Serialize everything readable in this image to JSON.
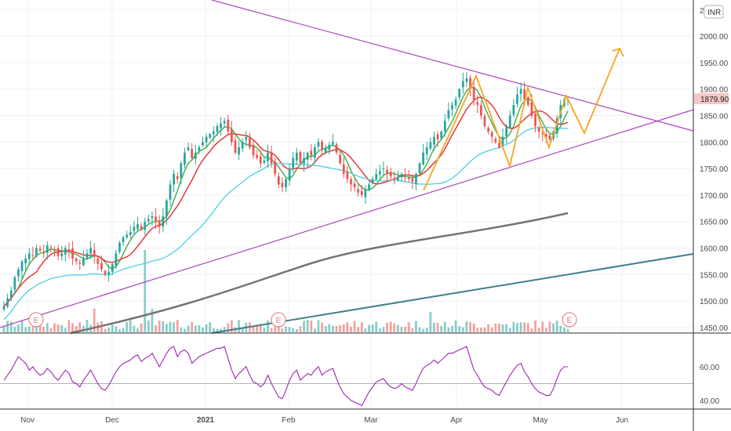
{
  "chart_data": [
    {
      "type": "candlestick",
      "currency": "INR",
      "current_price": "1879.90",
      "x_ticks": [
        "Nov",
        "Dec",
        "2021",
        "Feb",
        "Mar",
        "Apr",
        "May",
        "Jun"
      ],
      "y_ticks": [
        "2000.00",
        "1950.00",
        "1900.00",
        "1850.00",
        "1800.00",
        "1750.00",
        "1700.00",
        "1650.00",
        "1600.00",
        "1550.00",
        "1500.00",
        "1450.00"
      ],
      "y_top_label_partial": "20",
      "ylim": [
        1440,
        2065
      ],
      "earnings_marker_label": "E",
      "earnings_markers": [
        "Oct",
        "Jan",
        "May"
      ],
      "colors": {
        "up": "#26a69a",
        "down": "#ef5350",
        "ma_fast": "#4caf50",
        "ma_slow": "#e53935",
        "ma_50": "#4dd0e1",
        "ma_200": "#757575",
        "trendline": "#ab47bc",
        "long_trend": "#3f7f8c",
        "projection": "#f5a623",
        "rsi": "#9c27b0"
      },
      "closes": [
        1490,
        1505,
        1520,
        1545,
        1560,
        1575,
        1580,
        1590,
        1585,
        1600,
        1595,
        1590,
        1605,
        1600,
        1595,
        1585,
        1590,
        1600,
        1595,
        1580,
        1575,
        1570,
        1580,
        1590,
        1600,
        1585,
        1570,
        1560,
        1550,
        1555,
        1570,
        1590,
        1610,
        1620,
        1625,
        1630,
        1640,
        1645,
        1635,
        1650,
        1655,
        1660,
        1650,
        1640,
        1660,
        1690,
        1720,
        1740,
        1730,
        1760,
        1780,
        1790,
        1770,
        1780,
        1790,
        1800,
        1810,
        1815,
        1820,
        1830,
        1835,
        1840,
        1820,
        1800,
        1780,
        1790,
        1800,
        1810,
        1790,
        1775,
        1770,
        1760,
        1765,
        1780,
        1760,
        1740,
        1720,
        1715,
        1730,
        1750,
        1770,
        1780,
        1760,
        1770,
        1780,
        1775,
        1790,
        1800,
        1785,
        1790,
        1795,
        1800,
        1780,
        1760,
        1740,
        1730,
        1720,
        1715,
        1705,
        1700,
        1710,
        1720,
        1730,
        1740,
        1745,
        1750,
        1740,
        1735,
        1730,
        1735,
        1740,
        1735,
        1730,
        1725,
        1740,
        1760,
        1780,
        1790,
        1800,
        1810,
        1805,
        1820,
        1840,
        1860,
        1870,
        1880,
        1900,
        1915,
        1920,
        1900,
        1880,
        1870,
        1850,
        1830,
        1820,
        1810,
        1800,
        1790,
        1810,
        1830,
        1850,
        1870,
        1890,
        1900,
        1880,
        1870,
        1850,
        1830,
        1820,
        1815,
        1810,
        1805,
        1820,
        1845,
        1870,
        1880,
        1879.9
      ],
      "rsi": {
        "ylim": [
          35,
          78
        ],
        "y_ticks": [
          "60.00",
          "40.00"
        ],
        "values": [
          52,
          55,
          58,
          62,
          66,
          64,
          62,
          58,
          60,
          57,
          55,
          56,
          59,
          57,
          54,
          52,
          55,
          58,
          56,
          51,
          50,
          48,
          52,
          55,
          58,
          54,
          50,
          47,
          46,
          49,
          53,
          57,
          60,
          62,
          63,
          64,
          66,
          67,
          63,
          65,
          66,
          68,
          64,
          60,
          64,
          68,
          71,
          72,
          66,
          69,
          70,
          68,
          62,
          64,
          66,
          67,
          68,
          69,
          70,
          71,
          71,
          72,
          65,
          58,
          53,
          56,
          58,
          60,
          55,
          51,
          50,
          48,
          50,
          55,
          50,
          46,
          42,
          41,
          46,
          52,
          56,
          58,
          52,
          54,
          56,
          55,
          58,
          60,
          55,
          57,
          58,
          59,
          53,
          48,
          44,
          42,
          40,
          39,
          38,
          37,
          41,
          45,
          48,
          51,
          52,
          53,
          50,
          48,
          47,
          48,
          50,
          48,
          47,
          46,
          50,
          55,
          59,
          61,
          62,
          64,
          62,
          64,
          66,
          68,
          68,
          69,
          70,
          71,
          72,
          65,
          58,
          55,
          51,
          48,
          47,
          46,
          44,
          43,
          47,
          51,
          55,
          58,
          61,
          62,
          57,
          54,
          50,
          47,
          45,
          44,
          43,
          43,
          47,
          53,
          58,
          60,
          60
        ]
      }
    }
  ]
}
